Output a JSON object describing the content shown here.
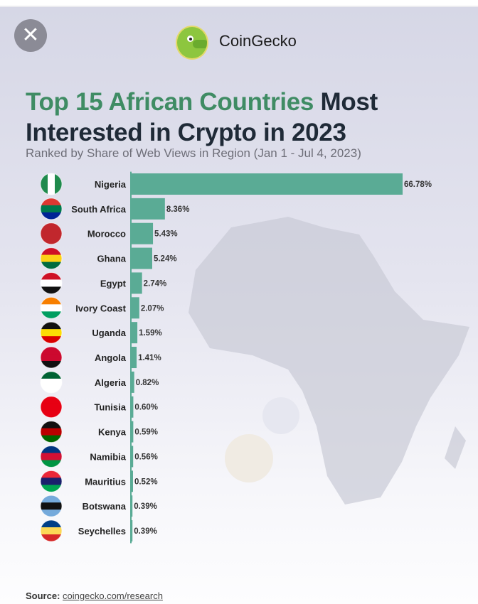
{
  "header": {
    "close_label": "✕",
    "brand": "CoinGecko"
  },
  "title_highlight": "Top 15 African Countries",
  "title_rest_1": " Most",
  "title_line2": "Interested in Crypto in 2023",
  "subtitle": "Ranked by Share of Web Views in Region (Jan 1 - Jul 4, 2023)",
  "source_label": "Source:",
  "source_link": "coingecko.com/research",
  "colors": {
    "bar": "#5aab95",
    "axis": "#5aab95",
    "title_green": "#3f8c64"
  },
  "chart_data": {
    "type": "bar",
    "orientation": "horizontal",
    "title": "Top 15 African Countries Most Interested in Crypto in 2023",
    "subtitle": "Ranked by Share of Web Views in Region (Jan 1 - Jul 4, 2023)",
    "xlabel": "",
    "ylabel": "",
    "unit": "%",
    "xlim": [
      0,
      66.78
    ],
    "categories": [
      "Nigeria",
      "South Africa",
      "Morocco",
      "Ghana",
      "Egypt",
      "Ivory Coast",
      "Uganda",
      "Angola",
      "Algeria",
      "Tunisia",
      "Kenya",
      "Namibia",
      "Mauritius",
      "Botswana",
      "Seychelles"
    ],
    "values": [
      66.78,
      8.36,
      5.43,
      5.24,
      2.74,
      2.07,
      1.59,
      1.41,
      0.82,
      0.6,
      0.59,
      0.56,
      0.52,
      0.39,
      0.39
    ],
    "labels": [
      "66.78%",
      "8.36%",
      "5.43%",
      "5.24%",
      "2.74%",
      "2.07%",
      "1.59%",
      "1.41%",
      "0.82%",
      "0.60%",
      "0.59%",
      "0.56%",
      "0.52%",
      "0.39%",
      "0.39%"
    ],
    "flags": [
      [
        "#1f8a4c",
        "#ffffff",
        "#1f8a4c"
      ],
      [
        "#de3831",
        "#007a4d",
        "#002395"
      ],
      [
        "#c1272d",
        "#c1272d",
        "#c1272d"
      ],
      [
        "#ce1126",
        "#fcd116",
        "#006b3f"
      ],
      [
        "#ce1126",
        "#ffffff",
        "#111111"
      ],
      [
        "#f77f00",
        "#ffffff",
        "#009e60"
      ],
      [
        "#111111",
        "#fcdc04",
        "#d90000"
      ],
      [
        "#cc092f",
        "#cc092f",
        "#111111"
      ],
      [
        "#006233",
        "#ffffff",
        "#ffffff"
      ],
      [
        "#e70013",
        "#e70013",
        "#e70013"
      ],
      [
        "#111111",
        "#bb0000",
        "#006600"
      ],
      [
        "#003580",
        "#d21034",
        "#009543"
      ],
      [
        "#ea2839",
        "#1a206d",
        "#00a551"
      ],
      [
        "#75aadb",
        "#111111",
        "#75aadb"
      ],
      [
        "#003f87",
        "#fcd856",
        "#d62828"
      ]
    ]
  }
}
